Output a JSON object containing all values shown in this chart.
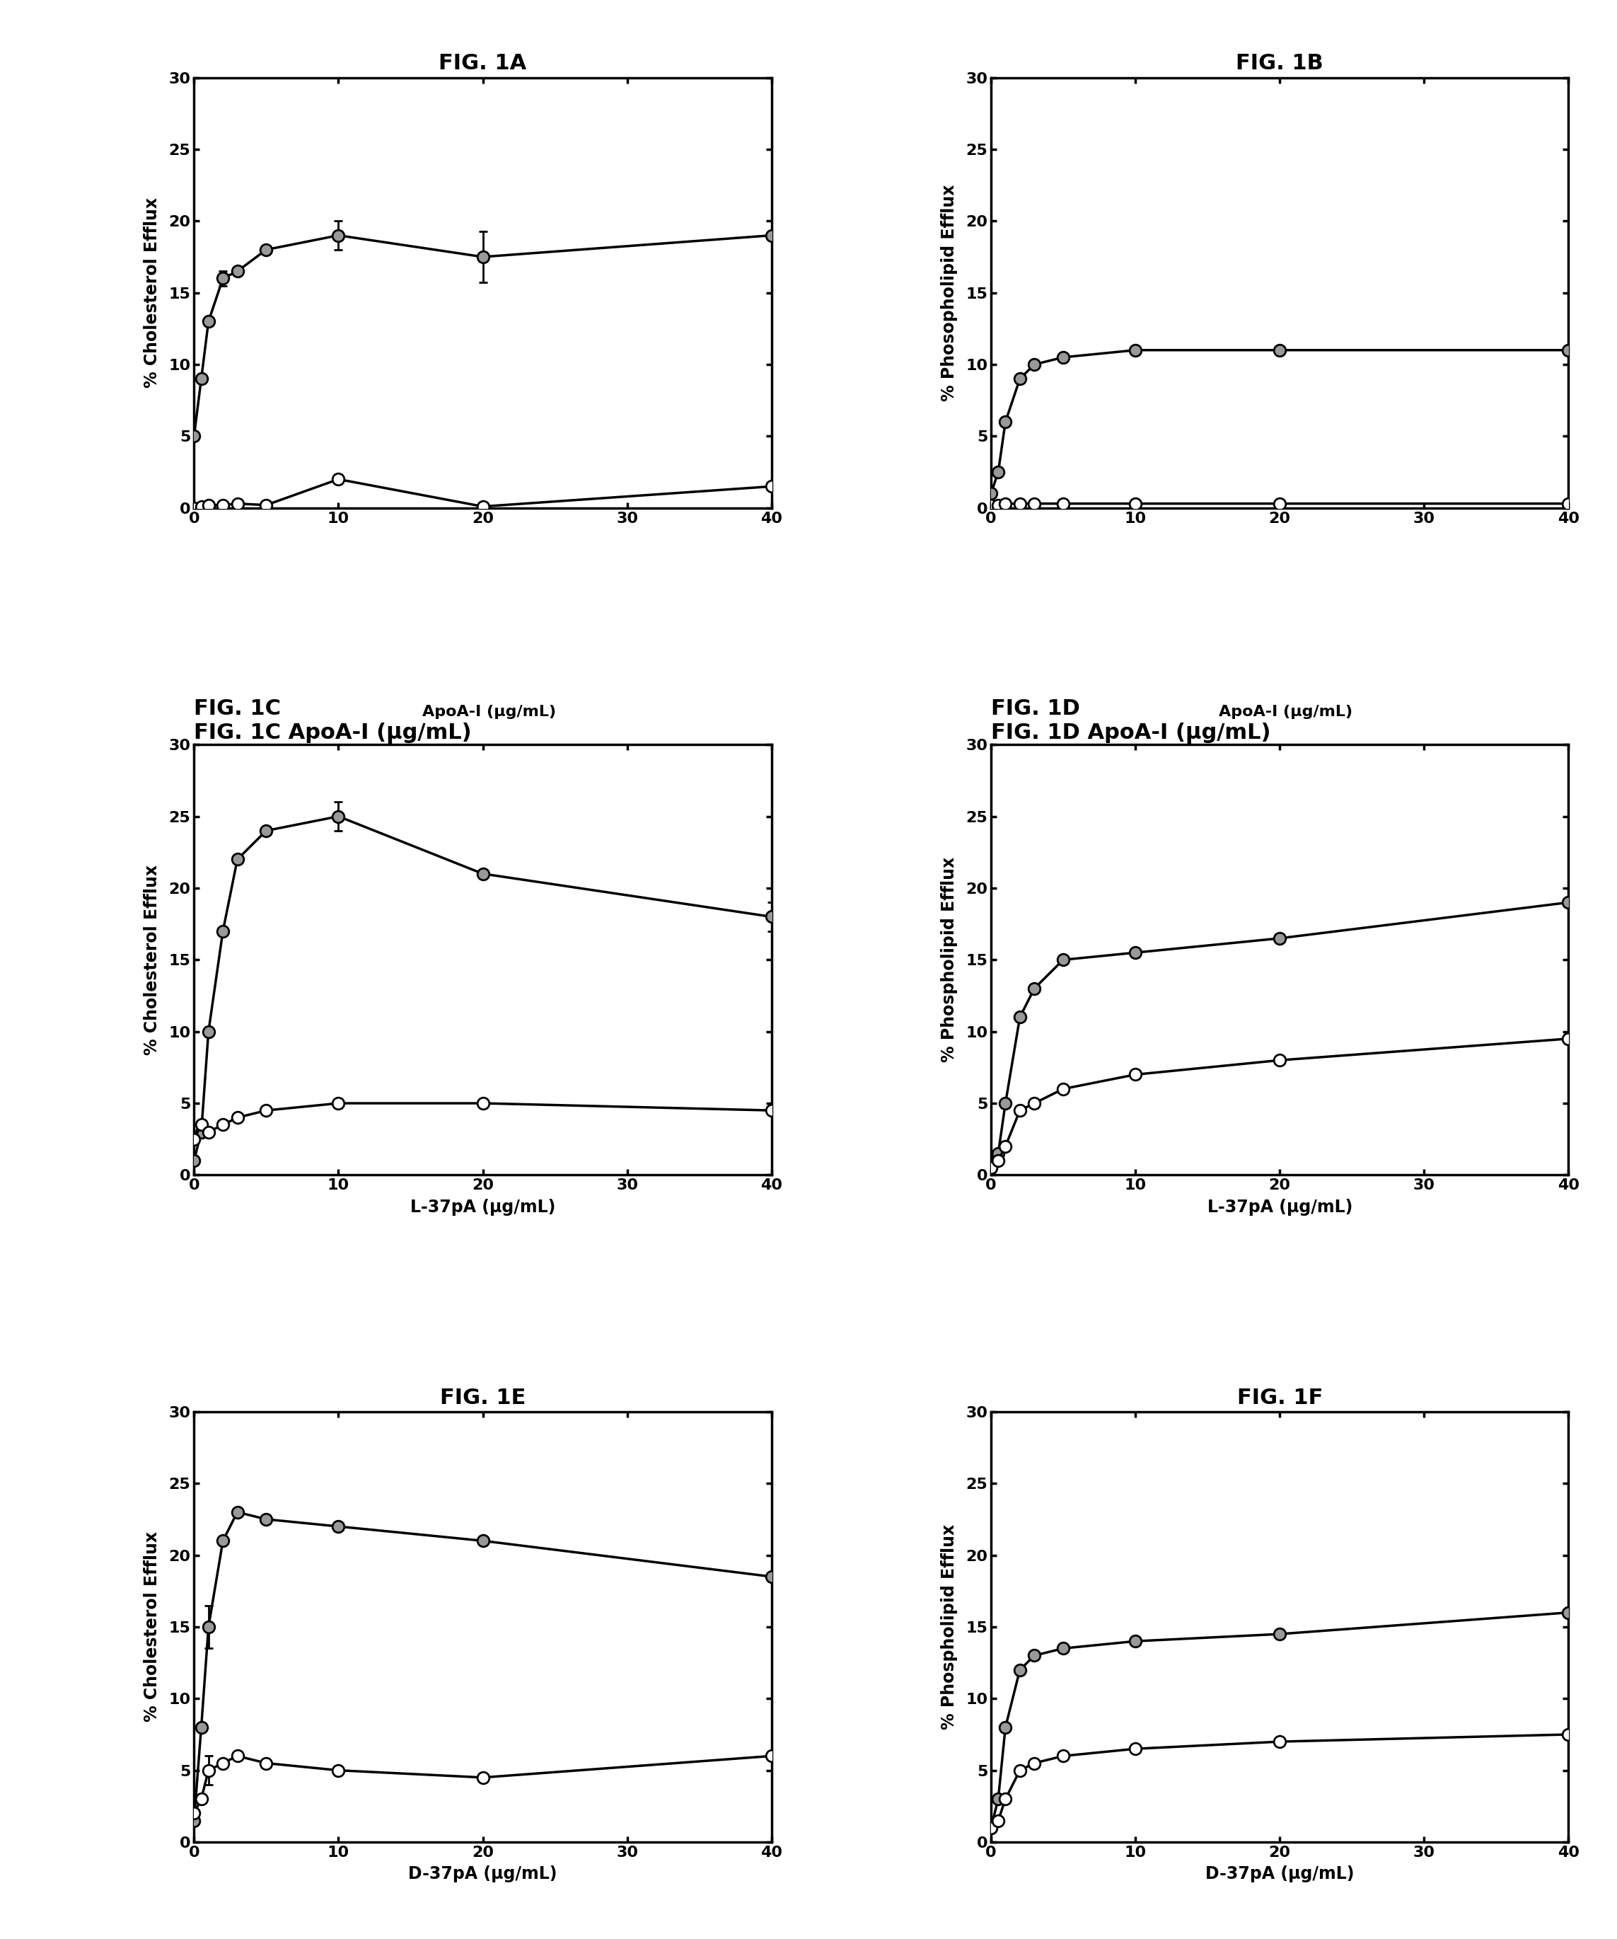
{
  "fig1A": {
    "title": "FIG. 1A",
    "ylabel": "% Cholesterol Efflux",
    "xlim": [
      0,
      40
    ],
    "ylim": [
      0,
      30
    ],
    "xticks": [
      0,
      10,
      20,
      30,
      40
    ],
    "yticks": [
      0,
      5,
      10,
      15,
      20,
      25,
      30
    ],
    "filled_x": [
      0,
      0.5,
      1,
      2,
      3,
      5,
      10,
      20,
      40
    ],
    "filled_y": [
      5.0,
      9.0,
      13.0,
      16.0,
      16.5,
      18.0,
      19.0,
      17.5,
      19.0
    ],
    "filled_yerr": [
      0,
      0,
      0,
      0.5,
      0,
      0,
      1.0,
      1.8,
      0
    ],
    "open_x": [
      0,
      0.5,
      1,
      2,
      3,
      5,
      10,
      20,
      40
    ],
    "open_y": [
      0.0,
      0.1,
      0.2,
      0.2,
      0.3,
      0.2,
      2.0,
      0.1,
      1.5
    ],
    "open_yerr": [
      0,
      0,
      0,
      0,
      0,
      0,
      0,
      0,
      0
    ]
  },
  "fig1B": {
    "title": "FIG. 1B",
    "ylabel": "% Phosopholipid Efflux",
    "xlim": [
      0,
      40
    ],
    "ylim": [
      0,
      30
    ],
    "xticks": [
      0,
      10,
      20,
      30,
      40
    ],
    "yticks": [
      0,
      5,
      10,
      15,
      20,
      25,
      30
    ],
    "filled_x": [
      0,
      0.5,
      1,
      2,
      3,
      5,
      10,
      20,
      40
    ],
    "filled_y": [
      1.0,
      2.5,
      6.0,
      9.0,
      10.0,
      10.5,
      11.0,
      11.0,
      11.0
    ],
    "filled_yerr": [
      0,
      0,
      0,
      0,
      0,
      0,
      0,
      0,
      0
    ],
    "open_x": [
      0,
      0.5,
      1,
      2,
      3,
      5,
      10,
      20,
      40
    ],
    "open_y": [
      0.2,
      0.2,
      0.3,
      0.3,
      0.3,
      0.3,
      0.3,
      0.3,
      0.3
    ],
    "open_yerr": [
      0,
      0,
      0,
      0,
      0,
      0,
      0,
      0,
      0
    ]
  },
  "fig1C": {
    "title": "FIG. 1C",
    "title_suffix": " ApoA-I (μg/mL)",
    "ylabel": "% Cholesterol Efflux",
    "xlabel": "L-37pA (μg/mL)",
    "xlim": [
      0,
      40
    ],
    "ylim": [
      0,
      30
    ],
    "xticks": [
      0,
      10,
      20,
      30,
      40
    ],
    "yticks": [
      0,
      5,
      10,
      15,
      20,
      25,
      30
    ],
    "filled_x": [
      0,
      0.5,
      1,
      2,
      3,
      5,
      10,
      20,
      40
    ],
    "filled_y": [
      1.0,
      3.0,
      10.0,
      17.0,
      22.0,
      24.0,
      25.0,
      21.0,
      18.0
    ],
    "filled_yerr": [
      0,
      0,
      0,
      0,
      0,
      0,
      1.0,
      0,
      1.0
    ],
    "open_x": [
      0,
      0.5,
      1,
      2,
      3,
      5,
      10,
      20,
      40
    ],
    "open_y": [
      2.5,
      3.5,
      3.0,
      3.5,
      4.0,
      4.5,
      5.0,
      5.0,
      4.5
    ],
    "open_yerr": [
      0,
      0,
      0,
      0,
      0,
      0,
      0,
      0,
      0
    ]
  },
  "fig1D": {
    "title": "FIG. 1D",
    "title_suffix": " ApoA-I (μg/mL)",
    "ylabel": "% Phospholipid Efflux",
    "xlabel": "L-37pA (μg/mL)",
    "xlim": [
      0,
      40
    ],
    "ylim": [
      0,
      30
    ],
    "xticks": [
      0,
      10,
      20,
      30,
      40
    ],
    "yticks": [
      0,
      5,
      10,
      15,
      20,
      25,
      30
    ],
    "filled_x": [
      0,
      0.5,
      1,
      2,
      3,
      5,
      10,
      20,
      40
    ],
    "filled_y": [
      0.5,
      1.5,
      5.0,
      11.0,
      13.0,
      15.0,
      15.5,
      16.5,
      19.0
    ],
    "filled_yerr": [
      0,
      0,
      0,
      0,
      0,
      0,
      0,
      0,
      0
    ],
    "open_x": [
      0,
      0.5,
      1,
      2,
      3,
      5,
      10,
      20,
      40
    ],
    "open_y": [
      0.5,
      1.0,
      2.0,
      4.5,
      5.0,
      6.0,
      7.0,
      8.0,
      9.5
    ],
    "open_yerr": [
      0,
      0,
      0,
      0,
      0,
      0,
      0,
      0,
      0
    ]
  },
  "fig1E": {
    "title": "FIG. 1E",
    "ylabel": "% Cholesterol Efflux",
    "xlabel": "D-37pA (μg/mL)",
    "xlim": [
      0,
      40
    ],
    "ylim": [
      0,
      30
    ],
    "xticks": [
      0,
      10,
      20,
      30,
      40
    ],
    "yticks": [
      0,
      5,
      10,
      15,
      20,
      25,
      30
    ],
    "filled_x": [
      0,
      0.5,
      1,
      2,
      3,
      5,
      10,
      20,
      40
    ],
    "filled_y": [
      1.5,
      8.0,
      15.0,
      21.0,
      23.0,
      22.5,
      22.0,
      21.0,
      18.5
    ],
    "filled_yerr": [
      0,
      0,
      1.5,
      0,
      0,
      0,
      0,
      0,
      0
    ],
    "open_x": [
      0,
      0.5,
      1,
      2,
      3,
      5,
      10,
      20,
      40
    ],
    "open_y": [
      2.0,
      3.0,
      5.0,
      5.5,
      6.0,
      5.5,
      5.0,
      4.5,
      6.0
    ],
    "open_yerr": [
      0,
      0,
      1.0,
      0,
      0,
      0,
      0,
      0,
      0
    ]
  },
  "fig1F": {
    "title": "FIG. 1F",
    "ylabel": "% Phospholipid Efflux",
    "xlabel": "D-37pA (μg/mL)",
    "xlim": [
      0,
      40
    ],
    "ylim": [
      0,
      30
    ],
    "xticks": [
      0,
      10,
      20,
      30,
      40
    ],
    "yticks": [
      0,
      5,
      10,
      15,
      20,
      25,
      30
    ],
    "filled_x": [
      0,
      0.5,
      1,
      2,
      3,
      5,
      10,
      20,
      40
    ],
    "filled_y": [
      1.0,
      3.0,
      8.0,
      12.0,
      13.0,
      13.5,
      14.0,
      14.5,
      16.0
    ],
    "filled_yerr": [
      0,
      0,
      0,
      0,
      0,
      0,
      0,
      0,
      0
    ],
    "open_x": [
      0,
      0.5,
      1,
      2,
      3,
      5,
      10,
      20,
      40
    ],
    "open_y": [
      1.0,
      1.5,
      3.0,
      5.0,
      5.5,
      6.0,
      6.5,
      7.0,
      7.5
    ],
    "open_yerr": [
      0,
      0,
      0,
      0,
      0,
      0,
      0,
      0,
      0
    ]
  },
  "filled_color": "#999999",
  "open_color": "#ffffff",
  "line_color": "#000000",
  "marker_size": 12,
  "linewidth": 2.5,
  "elinewidth": 2.0,
  "capsize": 4,
  "title_fontsize": 22,
  "title_suffix_fontsize": 16,
  "label_fontsize": 17,
  "tick_fontsize": 16,
  "background_color": "#ffffff"
}
